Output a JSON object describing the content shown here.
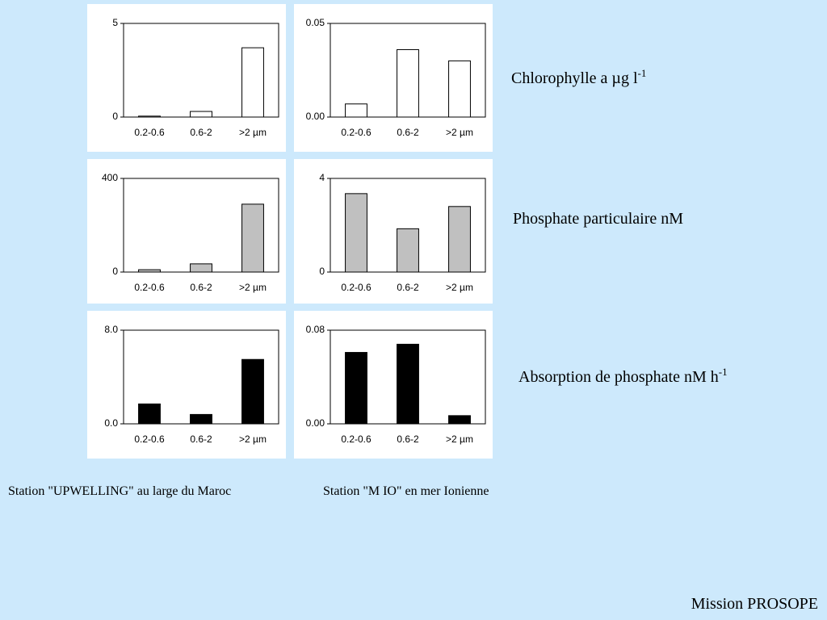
{
  "chart_data": [
    {
      "type": "bar",
      "categories": [
        "0.2-0.6",
        "0.6-2",
        ">2 µm"
      ],
      "values": [
        0.05,
        0.3,
        3.7
      ],
      "color": "#ffffff",
      "ylim": [
        0,
        5
      ],
      "yticks": [
        0,
        5
      ]
    },
    {
      "type": "bar",
      "categories": [
        "0.2-0.6",
        "0.6-2",
        ">2 µm"
      ],
      "values": [
        0.007,
        0.036,
        0.03
      ],
      "color": "#ffffff",
      "ylim": [
        0,
        0.05
      ],
      "yticks": [
        {
          "value": 0,
          "label": "0.00"
        },
        0.05
      ]
    },
    {
      "type": "bar",
      "categories": [
        "0.2-0.6",
        "0.6-2",
        ">2 µm"
      ],
      "values": [
        10,
        35,
        290
      ],
      "color": "#c0c0c0",
      "ylim": [
        0,
        400
      ],
      "yticks": [
        0,
        400
      ]
    },
    {
      "type": "bar",
      "categories": [
        "0.2-0.6",
        "0.6-2",
        ">2 µm"
      ],
      "values": [
        3.35,
        1.85,
        2.8
      ],
      "color": "#c0c0c0",
      "ylim": [
        0,
        4
      ],
      "yticks": [
        0,
        4
      ]
    },
    {
      "type": "bar",
      "categories": [
        "0.2-0.6",
        "0.6-2",
        ">2 µm"
      ],
      "values": [
        1.7,
        0.8,
        5.5
      ],
      "color": "#000000",
      "ylim": [
        0,
        8
      ],
      "yticks": [
        {
          "value": 0,
          "label": "0.0"
        },
        {
          "value": 8,
          "label": "8.0"
        }
      ]
    },
    {
      "type": "bar",
      "categories": [
        "0.2-0.6",
        "0.6-2",
        ">2 µm"
      ],
      "values": [
        0.061,
        0.068,
        0.007
      ],
      "color": "#000000",
      "ylim": [
        0,
        0.08
      ],
      "yticks": [
        {
          "value": 0,
          "label": "0.00"
        },
        0.08
      ]
    }
  ],
  "row_labels": [
    {
      "text": "Chlorophylle a µg l",
      "superscript": "-1"
    },
    {
      "text": "Phosphate particulaire nM"
    },
    {
      "text": "Absorption de phosphate nM h",
      "superscript": "-1"
    }
  ],
  "stations": [
    "Station \"UPWELLING\" au large du Maroc",
    "Station \"M IO\" en mer Ionienne"
  ],
  "footer": "Mission PROSOPE"
}
